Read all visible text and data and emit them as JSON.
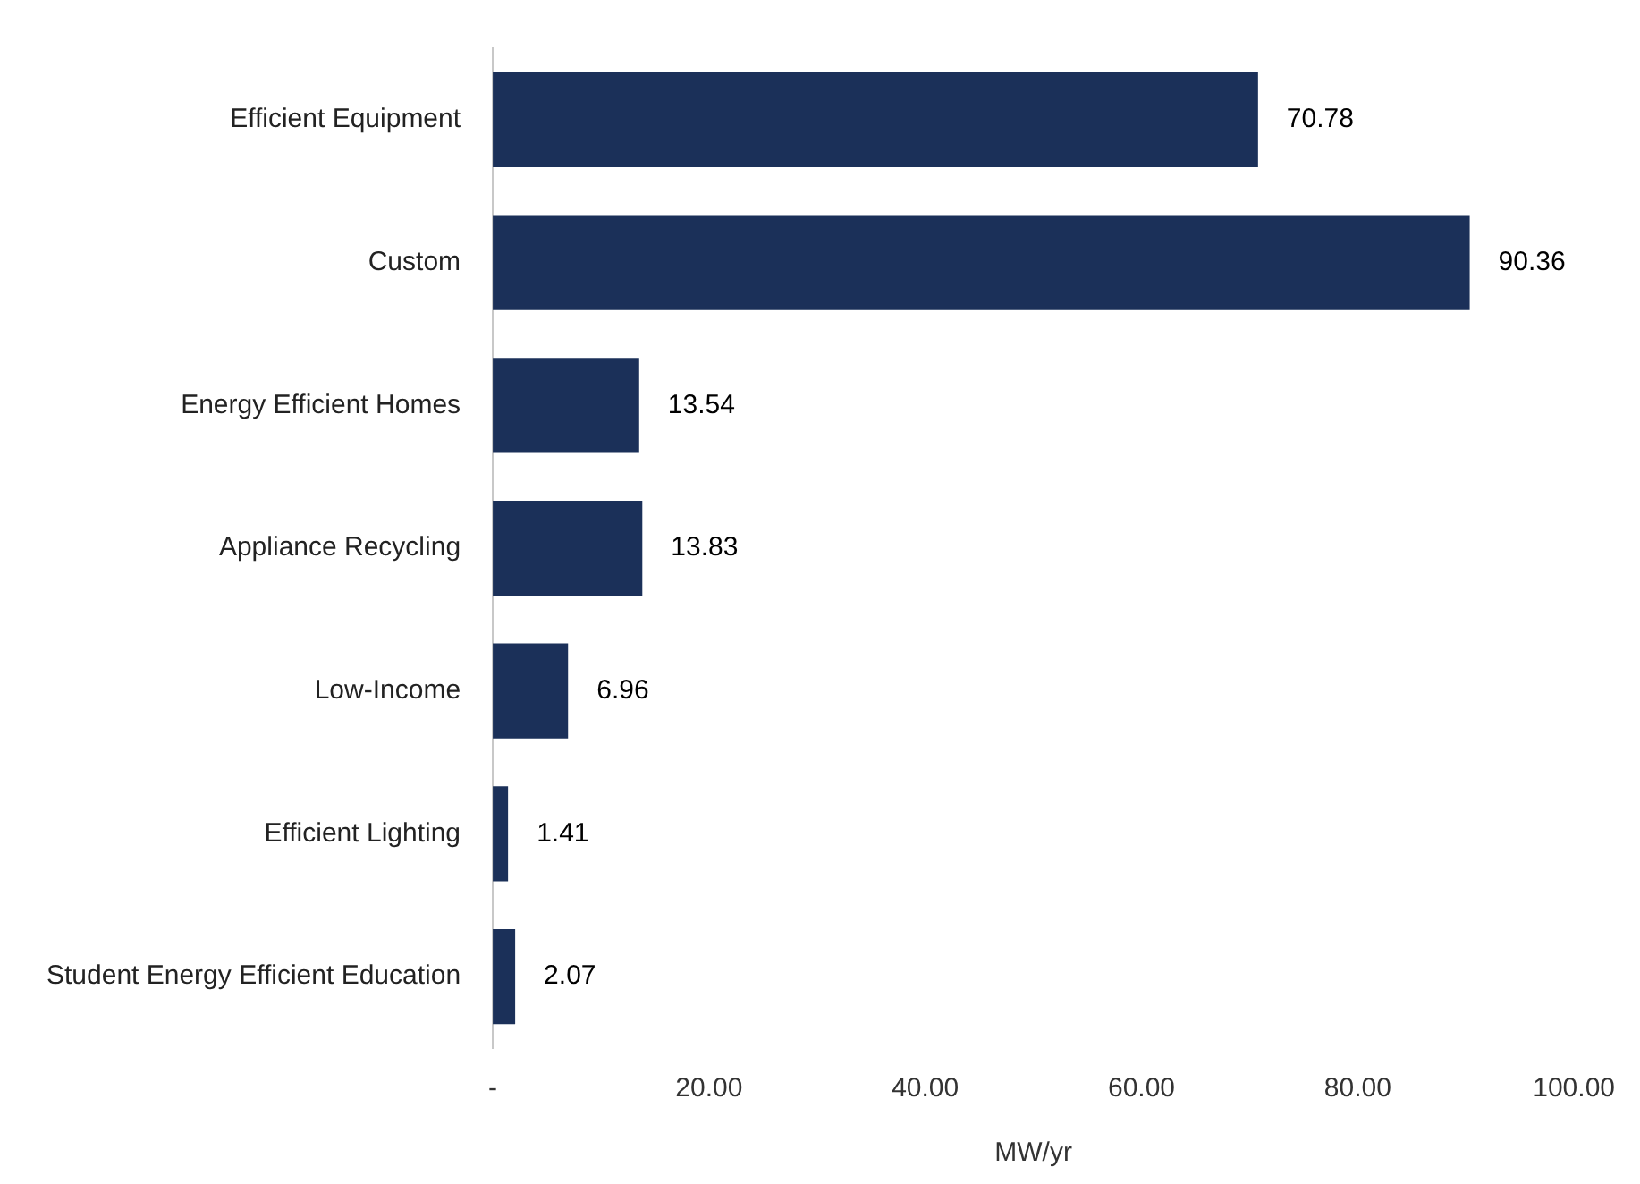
{
  "chart_data": {
    "type": "bar",
    "orientation": "horizontal",
    "xlabel": "MW/yr",
    "categories": [
      "Efficient Equipment",
      "Custom",
      "Energy Efficient Homes",
      "Appliance Recycling",
      "Low-Income",
      "Efficient Lighting",
      "Student Energy Efficient Education"
    ],
    "values": [
      70.78,
      90.36,
      13.54,
      13.83,
      6.96,
      1.41,
      2.07
    ],
    "color": "#1b3059",
    "xlim": [
      0,
      100
    ],
    "xticks": [
      {
        "value": 0,
        "label": "-"
      },
      {
        "value": 20,
        "label": "20.00"
      },
      {
        "value": 40,
        "label": "40.00"
      },
      {
        "value": 60,
        "label": "60.00"
      },
      {
        "value": 80,
        "label": "80.00"
      },
      {
        "value": 100,
        "label": "100.00"
      }
    ],
    "data_labels": true,
    "grid": false,
    "legend": false
  }
}
